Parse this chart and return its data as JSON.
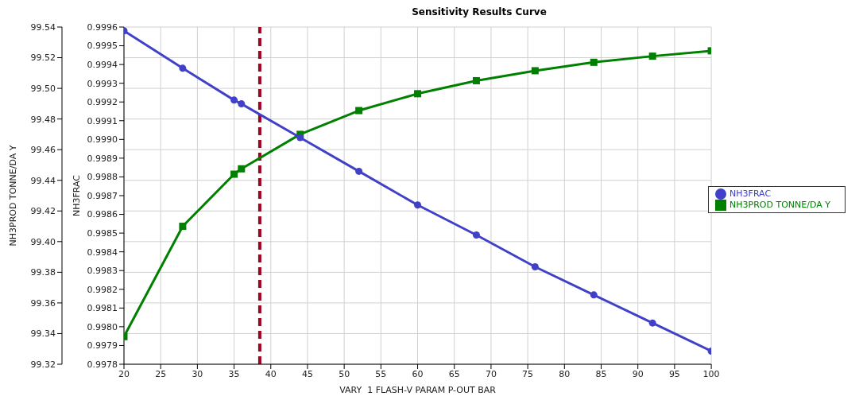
{
  "chart_data": {
    "type": "line",
    "title": "Sensitivity Results Curve",
    "xlabel": "VARY  1 FLASH-V PARAM P-OUT BAR",
    "ylabel": "NH3PROD TONNE/DA Y",
    "y2label": "NH3FRAC",
    "x": [
      20,
      28,
      35,
      36,
      44,
      52,
      60,
      68,
      76,
      84,
      92,
      100
    ],
    "series": [
      {
        "name": "NH3FRAC",
        "color": "#4040c8",
        "axis": "y2",
        "marker": "circle",
        "values": [
          0.99958,
          0.99938,
          0.99921,
          0.99919,
          0.99901,
          0.99883,
          0.99865,
          0.99849,
          0.99832,
          0.99817,
          0.99802,
          0.99787
        ]
      },
      {
        "name": "NH3PROD TONNE/DA Y",
        "color": "#008000",
        "axis": "y",
        "marker": "square",
        "values": [
          99.338,
          99.41,
          99.444,
          99.4475,
          99.47,
          99.4855,
          99.4965,
          99.505,
          99.5115,
          99.517,
          99.521,
          99.5245
        ]
      }
    ],
    "xlim": [
      20,
      100
    ],
    "xticks": [
      20,
      25,
      30,
      35,
      40,
      45,
      50,
      55,
      60,
      65,
      70,
      75,
      80,
      85,
      90,
      95,
      100
    ],
    "ylim": [
      99.32,
      99.54
    ],
    "yticks": [
      99.32,
      99.34,
      99.36,
      99.38,
      {
        "value": 99.4,
        "label": "99.40"
      },
      99.42,
      99.44,
      99.46,
      99.48,
      {
        "value": 99.5,
        "label": "99.50"
      },
      99.52,
      99.54
    ],
    "y2lim": [
      0.9978,
      0.9996
    ],
    "y2ticks": [
      0.9978,
      0.9979,
      {
        "value": 0.998,
        "label": "0.9980"
      },
      0.9981,
      0.9982,
      0.9983,
      0.9984,
      0.9985,
      0.9986,
      0.9987,
      0.9988,
      0.9989,
      {
        "value": 0.999,
        "label": "0.9990"
      },
      0.9991,
      0.9992,
      0.9993,
      0.9994,
      0.9995,
      0.9996
    ],
    "ref_lines": [
      {
        "axis": "x",
        "value": 38.5,
        "color": "#a50021",
        "line_style": "dashed"
      }
    ],
    "grid": true,
    "legend": "right",
    "line_style": "solid"
  }
}
